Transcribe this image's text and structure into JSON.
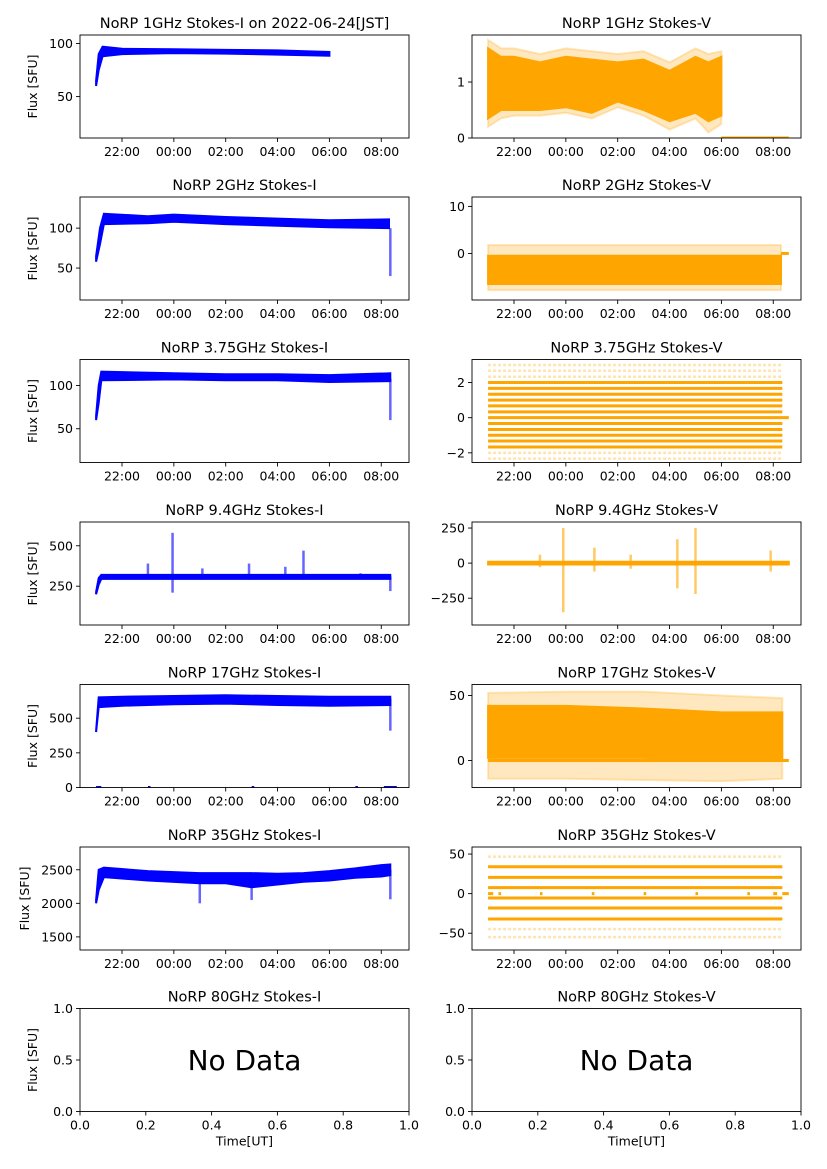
{
  "chart_data": {
    "type": "scatter",
    "figure_title": "NoRP 1GHz Stokes-I on 2022-06-24[JST]",
    "colors": {
      "stokes_i": "#0000ff",
      "stokes_v": "#ffa500"
    },
    "x_unit": "hours (24+ = next day)",
    "time_ticks": {
      "values": [
        22,
        24,
        26,
        28,
        30,
        32
      ],
      "labels": [
        "22:00",
        "00:00",
        "02:00",
        "04:00",
        "06:00",
        "08:00"
      ]
    },
    "ylabel": "Flux [SFU]",
    "xlabel_nodata": "Time[UT]",
    "nodata_text": "No Data",
    "panels": [
      {
        "title": "NoRP 1GHz Stokes-I on 2022-06-24[JST]",
        "stokes": "I",
        "xlim": [
          20.38,
          33.07
        ],
        "ylim": [
          11,
          108
        ],
        "yticks": [
          50,
          100
        ],
        "ytick_labels": [
          "50",
          "100"
        ],
        "core": {
          "t": [
            21.0,
            21.1,
            21.25,
            22,
            24,
            26,
            28,
            30
          ],
          "lo": [
            60,
            75,
            88,
            90,
            91,
            90.5,
            89.5,
            88.5
          ],
          "hi": [
            65,
            90,
            97,
            95,
            94.5,
            94,
            93.5,
            92
          ]
        }
      },
      {
        "title": "NoRP 1GHz Stokes-V",
        "stokes": "V",
        "xlim": [
          20.38,
          33.07
        ],
        "ylim": [
          0,
          1.84
        ],
        "yticks": [
          0,
          1
        ],
        "ytick_labels": [
          "0",
          "1"
        ],
        "outer": {
          "t": [
            21,
            21.5,
            22,
            23,
            24,
            25,
            26,
            27,
            28,
            29,
            29.5,
            30
          ],
          "lo": [
            0.2,
            0.35,
            0.4,
            0.4,
            0.45,
            0.35,
            0.55,
            0.4,
            0.15,
            0.35,
            0.1,
            0.25
          ],
          "hi": [
            1.75,
            1.6,
            1.6,
            1.5,
            1.6,
            1.55,
            1.5,
            1.55,
            1.35,
            1.6,
            1.5,
            1.55
          ]
        },
        "core": {
          "t": [
            21,
            21.5,
            22,
            23,
            24,
            25,
            26,
            27,
            28,
            29,
            29.5,
            30
          ],
          "lo": [
            0.35,
            0.5,
            0.5,
            0.5,
            0.55,
            0.45,
            0.65,
            0.5,
            0.3,
            0.45,
            0.3,
            0.4
          ],
          "hi": [
            1.6,
            1.45,
            1.45,
            1.35,
            1.45,
            1.4,
            1.35,
            1.4,
            1.2,
            1.45,
            1.35,
            1.45
          ]
        },
        "hlines": [
          {
            "y": 0,
            "t": [
              30,
              32.6
            ]
          }
        ]
      },
      {
        "title": "NoRP 2GHz Stokes-I",
        "stokes": "I",
        "xlim": [
          20.38,
          33.07
        ],
        "ylim": [
          10,
          139
        ],
        "yticks": [
          50,
          100
        ],
        "ytick_labels": [
          "50",
          "100"
        ],
        "core": {
          "t": [
            21.0,
            21.15,
            21.3,
            23,
            24,
            26,
            28,
            30,
            32.3
          ],
          "lo": [
            58,
            80,
            105,
            106,
            108,
            105,
            103,
            101,
            100
          ],
          "hi": [
            65,
            100,
            118,
            115,
            117,
            114,
            112,
            110,
            111
          ]
        },
        "spikes": [
          [
            32.35,
            40,
            100
          ]
        ]
      },
      {
        "title": "NoRP 2GHz Stokes-V",
        "stokes": "V",
        "xlim": [
          20.38,
          33.07
        ],
        "ylim": [
          -9.9,
          12
        ],
        "yticks": [
          0,
          10
        ],
        "ytick_labels": [
          "0",
          "10"
        ],
        "outer": {
          "t": [
            21,
            32.3
          ],
          "lo": [
            -7.8,
            -7.8
          ],
          "hi": [
            1.8,
            1.8
          ]
        },
        "core": {
          "t": [
            21,
            32.3
          ],
          "lo": [
            -6.5,
            -6.5
          ],
          "hi": [
            -0.5,
            -0.5
          ]
        },
        "hlines": [
          {
            "y": 0,
            "t": [
              32.3,
              32.6
            ]
          }
        ]
      },
      {
        "title": "NoRP 3.75GHz Stokes-I",
        "stokes": "I",
        "xlim": [
          20.38,
          33.07
        ],
        "ylim": [
          11,
          130
        ],
        "yticks": [
          50,
          100
        ],
        "ytick_labels": [
          "50",
          "100"
        ],
        "core": {
          "t": [
            21.0,
            21.1,
            21.2,
            24,
            26,
            28,
            30,
            32.35
          ],
          "lo": [
            60,
            80,
            106,
            107,
            106,
            106,
            104,
            105
          ],
          "hi": [
            65,
            100,
            116,
            114,
            113,
            113,
            112,
            114
          ]
        },
        "spikes": [
          [
            32.35,
            60,
            108
          ]
        ]
      },
      {
        "title": "NoRP 3.75GHz Stokes-V",
        "stokes": "V",
        "xlim": [
          20.38,
          33.07
        ],
        "ylim": [
          -2.55,
          3.31
        ],
        "yticks": [
          -2,
          0,
          2
        ],
        "ytick_labels": [
          "−2",
          "0",
          "2"
        ],
        "levels": {
          "t": [
            21,
            32.35
          ],
          "solid": [
            -1.67,
            -1.33,
            -1,
            -0.67,
            -0.33,
            0.33,
            0.67,
            1,
            1.33,
            1.67,
            2
          ],
          "faint": [
            -2.33,
            -2,
            2.33,
            2.67,
            3
          ]
        },
        "hlines": [
          {
            "y": 0,
            "t": [
              21,
              32.6
            ]
          }
        ]
      },
      {
        "title": "NoRP 9.4GHz Stokes-I",
        "stokes": "I",
        "xlim": [
          20.38,
          33.07
        ],
        "ylim": [
          10,
          647
        ],
        "yticks": [
          250,
          500
        ],
        "ytick_labels": [
          "250",
          "500"
        ],
        "core": {
          "t": [
            21.0,
            21.1,
            21.2,
            32.35
          ],
          "lo": [
            200,
            260,
            295,
            295
          ],
          "hi": [
            215,
            300,
            320,
            320
          ]
        },
        "spikes": [
          [
            23.0,
            300,
            390
          ],
          [
            23.95,
            210,
            580
          ],
          [
            25.1,
            290,
            360
          ],
          [
            26.9,
            290,
            390
          ],
          [
            28.3,
            300,
            370
          ],
          [
            29.0,
            290,
            470
          ],
          [
            31.2,
            300,
            330
          ],
          [
            32.35,
            220,
            310
          ]
        ]
      },
      {
        "title": "NoRP 9.4GHz Stokes-V",
        "stokes": "V",
        "xlim": [
          20.38,
          33.07
        ],
        "ylim": [
          -441,
          293
        ],
        "yticks": [
          -250,
          0,
          250
        ],
        "ytick_labels": [
          "−250",
          "0",
          "250"
        ],
        "core": {
          "t": [
            21,
            32.6
          ],
          "lo": [
            -10,
            -10
          ],
          "hi": [
            10,
            10
          ]
        },
        "spikes": [
          [
            23.0,
            -30,
            60
          ],
          [
            23.9,
            -350,
            250
          ],
          [
            25.1,
            -60,
            110
          ],
          [
            26.5,
            -40,
            60
          ],
          [
            28.3,
            -180,
            170
          ],
          [
            29.0,
            -220,
            250
          ],
          [
            31.9,
            -60,
            90
          ]
        ]
      },
      {
        "title": "NoRP 17GHz Stokes-I",
        "stokes": "I",
        "xlim": [
          20.38,
          33.07
        ],
        "ylim": [
          0,
          743
        ],
        "yticks": [
          0,
          250,
          500
        ],
        "ytick_labels": [
          "0",
          "250",
          "500"
        ],
        "core": {
          "t": [
            21.0,
            21.1,
            22,
            24,
            26,
            28,
            30,
            32.35
          ],
          "lo": [
            400,
            580,
            590,
            600,
            605,
            595,
            590,
            595
          ],
          "hi": [
            410,
            650,
            655,
            660,
            665,
            660,
            655,
            655
          ]
        },
        "spikes": [
          [
            32.35,
            410,
            640
          ]
        ],
        "hlines": [
          {
            "y": 0,
            "t": [
              21.0,
              21.2
            ]
          },
          {
            "y": 0,
            "t": [
              23.0,
              23.1
            ]
          },
          {
            "y": 0,
            "t": [
              27.0,
              27.1
            ]
          },
          {
            "y": 0,
            "t": [
              31.0,
              31.1
            ]
          },
          {
            "y": 0,
            "t": [
              32.1,
              32.6
            ]
          }
        ]
      },
      {
        "title": "NoRP 17GHz Stokes-V",
        "stokes": "V",
        "xlim": [
          20.38,
          33.07
        ],
        "ylim": [
          -20.8,
          58.5
        ],
        "yticks": [
          0,
          50
        ],
        "ytick_labels": [
          "0",
          "50"
        ],
        "outer": {
          "t": [
            21,
            24,
            27,
            30,
            32.35
          ],
          "lo": [
            -14,
            -14,
            -15,
            -16,
            -14
          ],
          "hi": [
            52,
            53,
            53,
            50,
            48
          ]
        },
        "core": {
          "t": [
            21,
            24,
            27,
            30,
            32.35
          ],
          "lo": [
            2,
            2,
            2,
            0,
            0
          ],
          "hi": [
            42,
            42,
            40,
            37,
            37
          ]
        },
        "hlines": [
          {
            "y": 0,
            "t": [
              21,
              32.6
            ]
          }
        ]
      },
      {
        "title": "NoRP 35GHz Stokes-I",
        "stokes": "I",
        "xlim": [
          20.38,
          33.07
        ],
        "ylim": [
          1305,
          2839
        ],
        "yticks": [
          1500,
          2000,
          2500
        ],
        "ytick_labels": [
          "1500",
          "2000",
          "2500"
        ],
        "core": {
          "t": [
            21.0,
            21.1,
            21.3,
            23,
            25,
            26,
            27,
            28,
            29,
            30,
            31,
            32,
            32.35
          ],
          "lo": [
            2000,
            2200,
            2390,
            2340,
            2300,
            2300,
            2240,
            2280,
            2320,
            2340,
            2380,
            2400,
            2420
          ],
          "hi": [
            2050,
            2500,
            2530,
            2480,
            2450,
            2450,
            2450,
            2440,
            2450,
            2480,
            2520,
            2570,
            2580
          ]
        },
        "spikes": [
          [
            25.0,
            2000,
            2400
          ],
          [
            27.0,
            2050,
            2400
          ],
          [
            32.35,
            2060,
            2500
          ]
        ]
      },
      {
        "title": "NoRP 35GHz Stokes-V",
        "stokes": "V",
        "xlim": [
          20.38,
          33.07
        ],
        "ylim": [
          -71.2,
          58.9
        ],
        "yticks": [
          -50,
          0,
          50
        ],
        "ytick_labels": [
          "−50",
          "0",
          "50"
        ],
        "levels": {
          "t": [
            21,
            32.35
          ],
          "solid": [
            -32,
            -18.2,
            -5.5,
            7.6,
            20.6,
            33.9
          ],
          "faint": [
            -55,
            -44.9,
            46.7
          ]
        },
        "hlines": [
          {
            "y": 0,
            "t": [
              21,
              21.2
            ]
          },
          {
            "y": 0,
            "t": [
              21.4,
              21.5
            ]
          },
          {
            "y": 0,
            "t": [
              23.0,
              23.1
            ]
          },
          {
            "y": 0,
            "t": [
              25.0,
              25.1
            ]
          },
          {
            "y": 0,
            "t": [
              27.0,
              27.1
            ]
          },
          {
            "y": 0,
            "t": [
              29.0,
              29.1
            ]
          },
          {
            "y": 0,
            "t": [
              31.0,
              31.1
            ]
          },
          {
            "y": 0,
            "t": [
              32.0,
              32.15
            ]
          },
          {
            "y": 0,
            "t": [
              32.35,
              32.6
            ]
          }
        ]
      },
      {
        "title": "NoRP 80GHz Stokes-I",
        "stokes": "I",
        "nodata": true,
        "xlim": [
          0,
          1
        ],
        "ylim": [
          0,
          1
        ],
        "yticks": [
          0,
          0.5,
          1
        ],
        "ytick_labels": [
          "0.0",
          "0.5",
          "1.0"
        ],
        "xticks": [
          0,
          0.2,
          0.4,
          0.6,
          0.8,
          1
        ],
        "xtick_labels": [
          "0.0",
          "0.2",
          "0.4",
          "0.6",
          "0.8",
          "1.0"
        ]
      },
      {
        "title": "NoRP 80GHz Stokes-V",
        "stokes": "V",
        "nodata": true,
        "xlim": [
          0,
          1
        ],
        "ylim": [
          0,
          1
        ],
        "yticks": [
          0,
          0.5,
          1
        ],
        "ytick_labels": [
          "0.0",
          "0.5",
          "1.0"
        ],
        "xticks": [
          0,
          0.2,
          0.4,
          0.6,
          0.8,
          1
        ],
        "xtick_labels": [
          "0.0",
          "0.2",
          "0.4",
          "0.6",
          "0.8",
          "1.0"
        ]
      }
    ]
  }
}
